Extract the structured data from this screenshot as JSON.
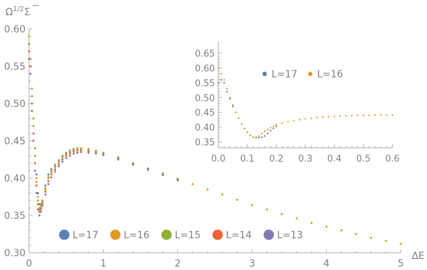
{
  "chart_data": [
    {
      "type": "scatter",
      "role": "main",
      "xlabel": "ΔE",
      "ylabel": "Ω^{1/2}Σ̄",
      "ylabel_base": "Ω",
      "ylabel_sup": "1/2",
      "ylabel_tail": "Σ",
      "xlim": [
        0,
        5
      ],
      "ylim": [
        0.3,
        0.6
      ],
      "xticks": [
        0,
        1,
        2,
        3,
        4,
        5
      ],
      "xtick_labels": [
        "0",
        "1",
        "2",
        "3",
        "4",
        "5"
      ],
      "yticks": [
        0.3,
        0.35,
        0.4,
        0.45,
        0.5,
        0.55,
        0.6
      ],
      "ytick_labels": [
        "0.30",
        "0.35",
        "0.40",
        "0.45",
        "0.50",
        "0.55",
        "0.60"
      ],
      "grid": false,
      "legend_position": "bottom-left",
      "series": [
        {
          "name": "L=17",
          "color": "#5e81b5",
          "points": [
            [
              0.0,
              0.58
            ],
            [
              0.02,
              0.56
            ],
            [
              0.04,
              0.52
            ],
            [
              0.06,
              0.48
            ],
            [
              0.08,
              0.44
            ],
            [
              0.1,
              0.405
            ],
            [
              0.12,
              0.38
            ],
            [
              0.14,
              0.365
            ],
            [
              0.16,
              0.365
            ],
            [
              0.18,
              0.37
            ],
            [
              0.22,
              0.39
            ],
            [
              0.26,
              0.405
            ],
            [
              0.3,
              0.412
            ],
            [
              0.35,
              0.418
            ],
            [
              0.4,
              0.424
            ],
            [
              0.45,
              0.43
            ],
            [
              0.5,
              0.434
            ],
            [
              0.55,
              0.437
            ],
            [
              0.6,
              0.439
            ],
            [
              0.65,
              0.44
            ],
            [
              0.7,
              0.44
            ],
            [
              0.8,
              0.439
            ],
            [
              0.9,
              0.437
            ],
            [
              1.0,
              0.434
            ],
            [
              1.2,
              0.428
            ],
            [
              1.4,
              0.42
            ],
            [
              1.6,
              0.413
            ],
            [
              1.8,
              0.406
            ],
            [
              2.0,
              0.399
            ]
          ]
        },
        {
          "name": "L=16",
          "color": "#e19c24",
          "points": [
            [
              0.0,
              0.59
            ],
            [
              0.02,
              0.56
            ],
            [
              0.04,
              0.52
            ],
            [
              0.06,
              0.48
            ],
            [
              0.08,
              0.44
            ],
            [
              0.1,
              0.4
            ],
            [
              0.12,
              0.375
            ],
            [
              0.14,
              0.36
            ],
            [
              0.16,
              0.362
            ],
            [
              0.18,
              0.37
            ],
            [
              0.22,
              0.387
            ],
            [
              0.26,
              0.402
            ],
            [
              0.3,
              0.41
            ],
            [
              0.35,
              0.417
            ],
            [
              0.4,
              0.423
            ],
            [
              0.45,
              0.429
            ],
            [
              0.5,
              0.433
            ],
            [
              0.55,
              0.436
            ],
            [
              0.6,
              0.438
            ],
            [
              0.65,
              0.44
            ],
            [
              0.7,
              0.44
            ],
            [
              0.8,
              0.439
            ],
            [
              0.9,
              0.437
            ],
            [
              1.0,
              0.434
            ],
            [
              1.2,
              0.428
            ],
            [
              1.4,
              0.42
            ],
            [
              1.6,
              0.413
            ],
            [
              1.8,
              0.406
            ],
            [
              2.0,
              0.399
            ],
            [
              2.2,
              0.392
            ],
            [
              2.4,
              0.385
            ],
            [
              2.6,
              0.378
            ],
            [
              2.8,
              0.371
            ],
            [
              3.0,
              0.364
            ],
            [
              3.2,
              0.358
            ],
            [
              3.4,
              0.352
            ],
            [
              3.6,
              0.346
            ],
            [
              3.8,
              0.34
            ],
            [
              4.0,
              0.335
            ],
            [
              4.2,
              0.33
            ],
            [
              4.4,
              0.325
            ],
            [
              4.6,
              0.32
            ],
            [
              4.8,
              0.316
            ],
            [
              5.0,
              0.312
            ]
          ]
        },
        {
          "name": "L=15",
          "color": "#8fb032",
          "points": [
            [
              0.0,
              0.58
            ],
            [
              0.02,
              0.55
            ],
            [
              0.04,
              0.51
            ],
            [
              0.06,
              0.47
            ],
            [
              0.08,
              0.43
            ],
            [
              0.1,
              0.395
            ],
            [
              0.12,
              0.37
            ],
            [
              0.14,
              0.358
            ],
            [
              0.16,
              0.36
            ],
            [
              0.18,
              0.368
            ],
            [
              0.22,
              0.385
            ],
            [
              0.26,
              0.4
            ],
            [
              0.3,
              0.408
            ],
            [
              0.35,
              0.415
            ],
            [
              0.4,
              0.422
            ],
            [
              0.45,
              0.428
            ],
            [
              0.5,
              0.432
            ],
            [
              0.55,
              0.435
            ],
            [
              0.6,
              0.438
            ],
            [
              0.65,
              0.439
            ],
            [
              0.7,
              0.439
            ],
            [
              0.8,
              0.438
            ],
            [
              0.9,
              0.436
            ],
            [
              1.0,
              0.433
            ],
            [
              1.2,
              0.427
            ],
            [
              1.4,
              0.42
            ],
            [
              1.6,
              0.413
            ],
            [
              1.8,
              0.406
            ],
            [
              2.0,
              0.399
            ]
          ]
        },
        {
          "name": "L=14",
          "color": "#eb6235",
          "points": [
            [
              0.0,
              0.57
            ],
            [
              0.02,
              0.55
            ],
            [
              0.04,
              0.5
            ],
            [
              0.06,
              0.46
            ],
            [
              0.08,
              0.42
            ],
            [
              0.1,
              0.39
            ],
            [
              0.12,
              0.365
            ],
            [
              0.14,
              0.355
            ],
            [
              0.16,
              0.358
            ],
            [
              0.18,
              0.366
            ],
            [
              0.22,
              0.382
            ],
            [
              0.26,
              0.396
            ],
            [
              0.3,
              0.405
            ],
            [
              0.35,
              0.412
            ],
            [
              0.4,
              0.419
            ],
            [
              0.45,
              0.425
            ],
            [
              0.5,
              0.43
            ],
            [
              0.55,
              0.433
            ],
            [
              0.6,
              0.436
            ],
            [
              0.65,
              0.437
            ],
            [
              0.7,
              0.437
            ],
            [
              0.8,
              0.436
            ],
            [
              0.9,
              0.434
            ],
            [
              1.0,
              0.432
            ],
            [
              1.2,
              0.426
            ],
            [
              1.4,
              0.419
            ],
            [
              1.6,
              0.412
            ],
            [
              1.8,
              0.405
            ],
            [
              2.0,
              0.398
            ]
          ]
        },
        {
          "name": "L=13",
          "color": "#8778b3",
          "points": [
            [
              0.0,
              0.56
            ],
            [
              0.02,
              0.54
            ],
            [
              0.04,
              0.49
            ],
            [
              0.06,
              0.45
            ],
            [
              0.08,
              0.41
            ],
            [
              0.1,
              0.38
            ],
            [
              0.12,
              0.358
            ],
            [
              0.14,
              0.35
            ],
            [
              0.16,
              0.355
            ],
            [
              0.18,
              0.363
            ],
            [
              0.22,
              0.378
            ],
            [
              0.26,
              0.392
            ],
            [
              0.3,
              0.401
            ],
            [
              0.35,
              0.409
            ],
            [
              0.4,
              0.416
            ],
            [
              0.45,
              0.422
            ],
            [
              0.5,
              0.427
            ],
            [
              0.55,
              0.43
            ],
            [
              0.6,
              0.433
            ],
            [
              0.65,
              0.434
            ],
            [
              0.7,
              0.435
            ],
            [
              0.8,
              0.434
            ],
            [
              0.9,
              0.433
            ],
            [
              1.0,
              0.431
            ],
            [
              1.2,
              0.425
            ],
            [
              1.4,
              0.418
            ],
            [
              1.6,
              0.411
            ],
            [
              1.8,
              0.404
            ],
            [
              2.0,
              0.397
            ]
          ]
        }
      ],
      "legend": [
        {
          "label": "L=17",
          "color": "#5e81b5"
        },
        {
          "label": "L=16",
          "color": "#e19c24"
        },
        {
          "label": "L=15",
          "color": "#8fb032"
        },
        {
          "label": "L=14",
          "color": "#eb6235"
        },
        {
          "label": "L=13",
          "color": "#8778b3"
        }
      ]
    },
    {
      "type": "scatter",
      "role": "inset",
      "xlim": [
        0,
        0.6
      ],
      "ylim": [
        0.33,
        0.69
      ],
      "xticks": [
        0.0,
        0.1,
        0.2,
        0.3,
        0.4,
        0.5,
        0.6
      ],
      "xtick_labels": [
        "0.0",
        "0.1",
        "0.2",
        "0.3",
        "0.4",
        "0.5",
        "0.6"
      ],
      "yticks": [
        0.35,
        0.4,
        0.45,
        0.5,
        0.55,
        0.6,
        0.65
      ],
      "ytick_labels": [
        "0.35",
        "0.40",
        "0.45",
        "0.50",
        "0.55",
        "0.60",
        "0.65"
      ],
      "grid": false,
      "legend_position": "top-center",
      "series": [
        {
          "name": "L=17",
          "color": "#5e81b5",
          "points": [
            [
              0.0,
              0.55
            ],
            [
              0.01,
              0.56
            ],
            [
              0.02,
              0.55
            ],
            [
              0.03,
              0.52
            ],
            [
              0.04,
              0.495
            ],
            [
              0.05,
              0.47
            ],
            [
              0.06,
              0.45
            ],
            [
              0.07,
              0.43
            ],
            [
              0.08,
              0.41
            ],
            [
              0.09,
              0.395
            ],
            [
              0.1,
              0.382
            ],
            [
              0.11,
              0.372
            ],
            [
              0.12,
              0.366
            ],
            [
              0.13,
              0.364
            ],
            [
              0.14,
              0.364
            ],
            [
              0.15,
              0.366
            ],
            [
              0.16,
              0.37
            ],
            [
              0.17,
              0.378
            ],
            [
              0.18,
              0.388
            ],
            [
              0.19,
              0.396
            ],
            [
              0.2,
              0.402
            ]
          ]
        },
        {
          "name": "L=16",
          "color": "#e19c24",
          "points": [
            [
              0.0,
              0.6
            ],
            [
              0.01,
              0.58
            ],
            [
              0.02,
              0.56
            ],
            [
              0.03,
              0.53
            ],
            [
              0.04,
              0.5
            ],
            [
              0.05,
              0.475
            ],
            [
              0.06,
              0.45
            ],
            [
              0.07,
              0.43
            ],
            [
              0.08,
              0.41
            ],
            [
              0.09,
              0.395
            ],
            [
              0.1,
              0.382
            ],
            [
              0.11,
              0.372
            ],
            [
              0.12,
              0.366
            ],
            [
              0.13,
              0.366
            ],
            [
              0.14,
              0.37
            ],
            [
              0.15,
              0.378
            ],
            [
              0.16,
              0.386
            ],
            [
              0.17,
              0.392
            ],
            [
              0.18,
              0.398
            ],
            [
              0.19,
              0.403
            ],
            [
              0.2,
              0.408
            ],
            [
              0.22,
              0.414
            ],
            [
              0.24,
              0.418
            ],
            [
              0.26,
              0.422
            ],
            [
              0.28,
              0.425
            ],
            [
              0.3,
              0.428
            ],
            [
              0.32,
              0.43
            ],
            [
              0.34,
              0.432
            ],
            [
              0.36,
              0.434
            ],
            [
              0.38,
              0.435
            ],
            [
              0.4,
              0.436
            ],
            [
              0.42,
              0.437
            ],
            [
              0.44,
              0.438
            ],
            [
              0.46,
              0.439
            ],
            [
              0.48,
              0.44
            ],
            [
              0.5,
              0.44
            ],
            [
              0.52,
              0.44
            ],
            [
              0.54,
              0.441
            ],
            [
              0.56,
              0.441
            ],
            [
              0.58,
              0.441
            ],
            [
              0.6,
              0.441
            ]
          ]
        }
      ],
      "legend": [
        {
          "label": "L=17",
          "color": "#5e81b5"
        },
        {
          "label": "L=16",
          "color": "#e19c24"
        }
      ]
    }
  ]
}
